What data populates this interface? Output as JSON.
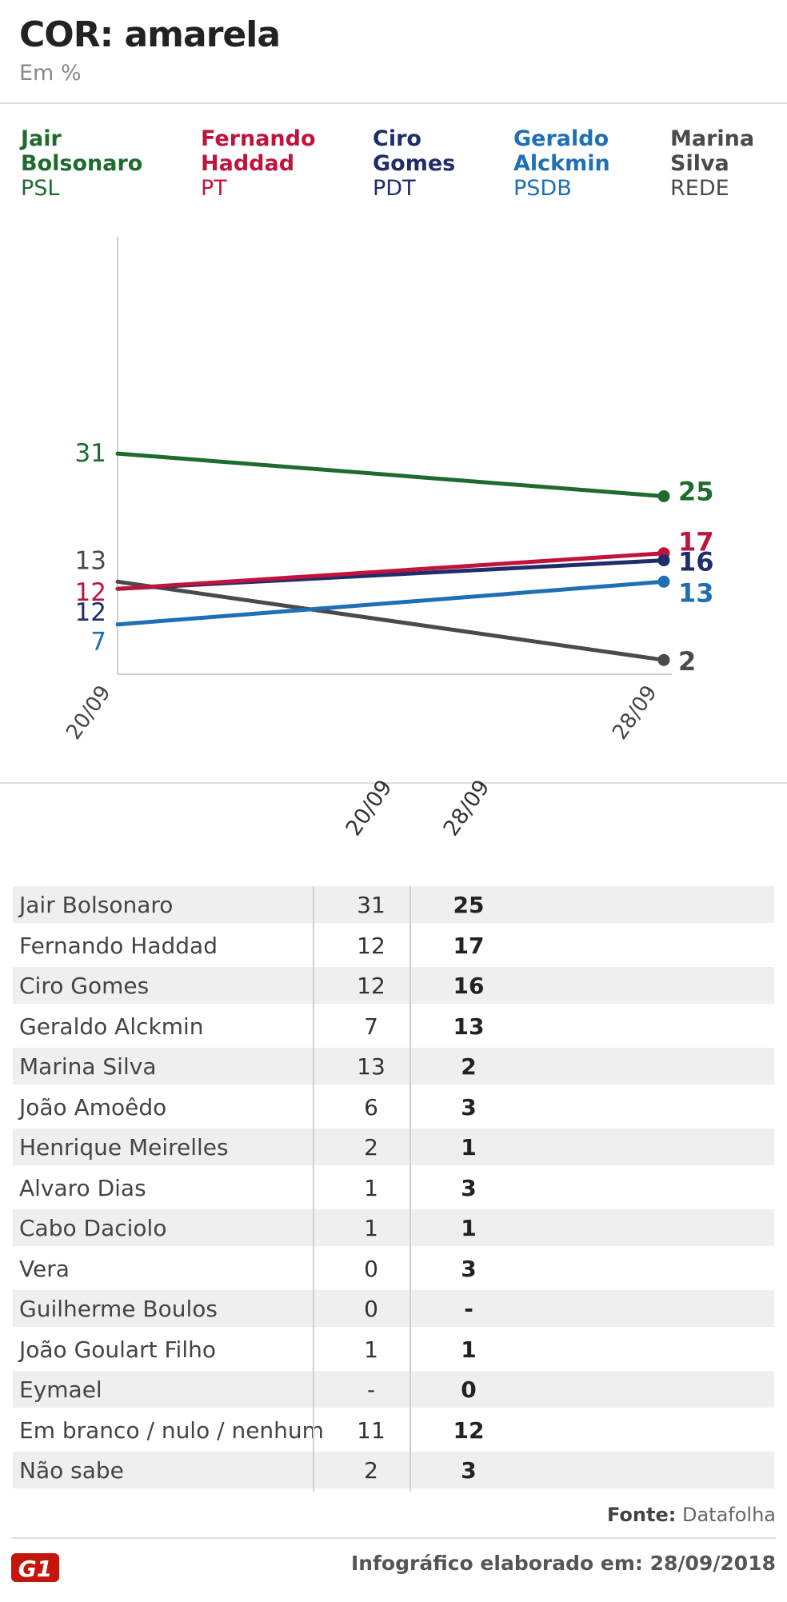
{
  "title": "COR: amarela",
  "subtitle": "Em %",
  "legend": [
    {
      "name1": "Jair",
      "name2": "Bolsonaro",
      "party": "PSL",
      "color": "#1e6b2e"
    },
    {
      "name1": "Fernando",
      "name2": "Haddad",
      "party": "PT",
      "color": "#c0143c"
    },
    {
      "name1": "Ciro",
      "name2": "Gomes",
      "party": "PDT",
      "color": "#1f2d6b"
    },
    {
      "name1": "Geraldo",
      "name2": "Alckmin",
      "party": "PSDB",
      "color": "#1f6fb5"
    },
    {
      "name1": "Marina",
      "name2": "Silva",
      "party": "REDE",
      "color": "#4a4a4a"
    }
  ],
  "chart_data": {
    "type": "line",
    "title": "COR: amarela",
    "ylabel": "Em %",
    "x": [
      "20/09",
      "28/09"
    ],
    "ylim": [
      0,
      50
    ],
    "series": [
      {
        "name": "Jair Bolsonaro",
        "values": [
          31,
          25
        ],
        "color": "#1e6b2e",
        "start_label": "31",
        "end_label": "25"
      },
      {
        "name": "Fernando Haddad",
        "values": [
          12,
          17
        ],
        "color": "#c0143c",
        "start_label": "12",
        "end_label": "17"
      },
      {
        "name": "Ciro Gomes",
        "values": [
          12,
          16
        ],
        "color": "#1f2d6b",
        "start_label": "12",
        "end_label": "16"
      },
      {
        "name": "Geraldo Alckmin",
        "values": [
          7,
          13
        ],
        "color": "#1f6fb5",
        "start_label": "7",
        "end_label": "13"
      },
      {
        "name": "Marina Silva",
        "values": [
          13,
          2
        ],
        "color": "#4a4a4a",
        "start_label": "13",
        "end_label": "2"
      }
    ]
  },
  "table": {
    "col1": "20/09",
    "col2": "28/09",
    "rows": [
      {
        "label": "Jair Bolsonaro",
        "v1": "31",
        "v2": "25"
      },
      {
        "label": "Fernando Haddad",
        "v1": "12",
        "v2": "17"
      },
      {
        "label": "Ciro Gomes",
        "v1": "12",
        "v2": "16"
      },
      {
        "label": "Geraldo Alckmin",
        "v1": "7",
        "v2": "13"
      },
      {
        "label": "Marina Silva",
        "v1": "13",
        "v2": "2"
      },
      {
        "label": "João Amoêdo",
        "v1": "6",
        "v2": "3"
      },
      {
        "label": "Henrique Meirelles",
        "v1": "2",
        "v2": "1"
      },
      {
        "label": "Alvaro Dias",
        "v1": "1",
        "v2": "3"
      },
      {
        "label": "Cabo Daciolo",
        "v1": "1",
        "v2": "1"
      },
      {
        "label": "Vera",
        "v1": "0",
        "v2": "3"
      },
      {
        "label": "Guilherme Boulos",
        "v1": "0",
        "v2": "-"
      },
      {
        "label": "João Goulart Filho",
        "v1": "1",
        "v2": "1"
      },
      {
        "label": "Eymael",
        "v1": "-",
        "v2": "0"
      },
      {
        "label": "Em branco / nulo / nenhum",
        "v1": "11",
        "v2": "12"
      },
      {
        "label": "Não sabe",
        "v1": "2",
        "v2": "3"
      }
    ]
  },
  "source_label": "Fonte:",
  "source_value": "Datafolha",
  "logo_text": "G1",
  "credit": "Infográfico elaborado em: 28/09/2018"
}
